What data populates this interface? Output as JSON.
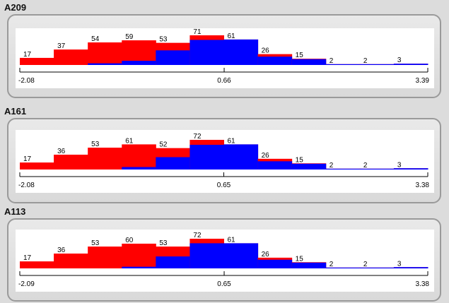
{
  "colors": {
    "series_a": "#ff0000",
    "series_b": "#0000ff"
  },
  "chart_data": [
    {
      "type": "bar",
      "title": "A209",
      "bar_labels": [
        "17",
        "37",
        "54",
        "59",
        "53",
        "71",
        "61",
        "26",
        "15",
        "2",
        "2",
        "3"
      ],
      "series": [
        {
          "values": [
            17,
            37,
            54,
            59,
            53,
            71,
            61,
            26,
            15,
            2,
            2,
            3
          ]
        },
        {
          "values": [
            0,
            0,
            4,
            10,
            35,
            60,
            61,
            20,
            14,
            2,
            2,
            3
          ]
        }
      ],
      "x_ticks": [
        "-2.08",
        "0.66",
        "3.39"
      ],
      "xlim": [
        -2.08,
        3.39
      ]
    },
    {
      "type": "bar",
      "title": "A161",
      "bar_labels": [
        "17",
        "36",
        "53",
        "61",
        "52",
        "72",
        "61",
        "26",
        "15",
        "2",
        "2",
        "3"
      ],
      "series": [
        {
          "values": [
            17,
            36,
            53,
            61,
            52,
            72,
            61,
            26,
            15,
            2,
            2,
            3
          ]
        },
        {
          "values": [
            0,
            0,
            0,
            6,
            30,
            60,
            61,
            20,
            14,
            2,
            2,
            3
          ]
        }
      ],
      "x_ticks": [
        "-2.08",
        "0.65",
        "3.38"
      ],
      "xlim": [
        -2.08,
        3.38
      ]
    },
    {
      "type": "bar",
      "title": "A113",
      "bar_labels": [
        "17",
        "36",
        "53",
        "60",
        "53",
        "72",
        "61",
        "26",
        "15",
        "2",
        "2",
        "3"
      ],
      "series": [
        {
          "values": [
            17,
            36,
            53,
            60,
            53,
            72,
            61,
            26,
            15,
            2,
            2,
            3
          ]
        },
        {
          "values": [
            0,
            0,
            0,
            4,
            29,
            61,
            61,
            21,
            14,
            2,
            2,
            3
          ]
        }
      ],
      "x_ticks": [
        "-2.09",
        "0.65",
        "3.38"
      ],
      "xlim": [
        -2.09,
        3.38
      ]
    }
  ]
}
